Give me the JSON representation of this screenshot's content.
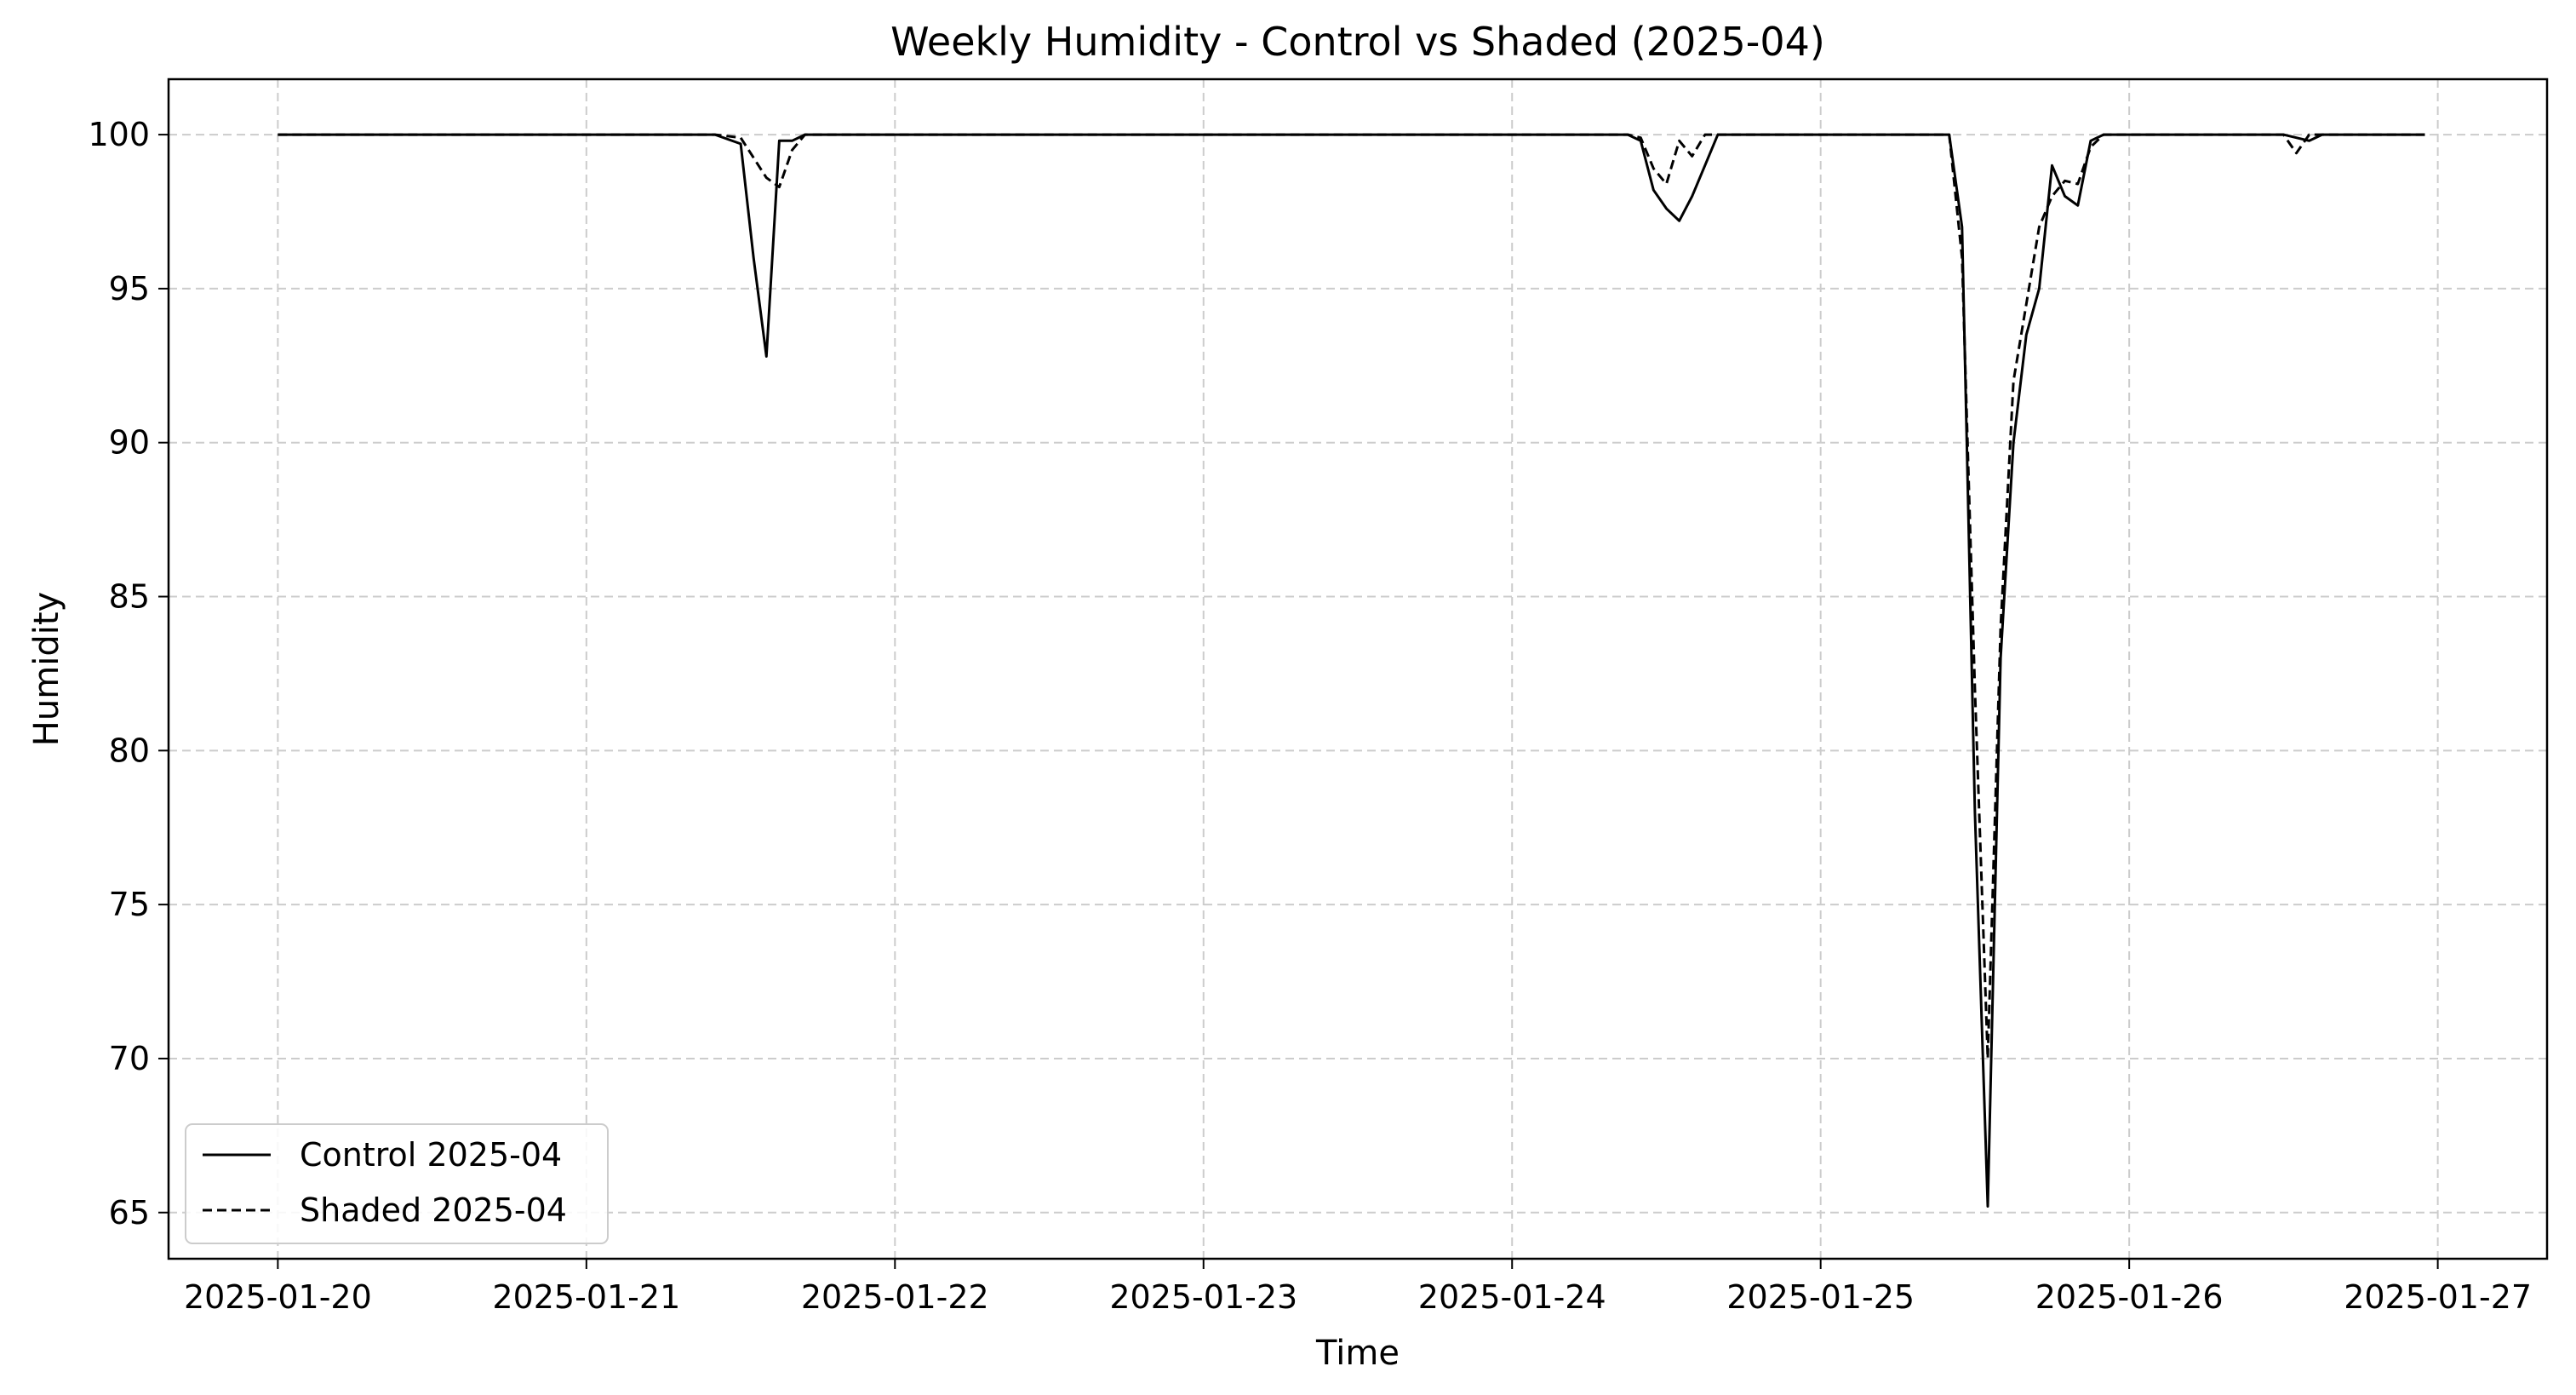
{
  "chart_data": {
    "type": "line",
    "title": "Weekly Humidity - Control vs Shaded (2025-04)",
    "xlabel": "Time",
    "ylabel": "Humidity",
    "xlim": [
      "2025-01-19 15:30",
      "2025-01-27 08:30"
    ],
    "ylim": [
      63.5,
      101.8
    ],
    "x_ticks": [
      "2025-01-20",
      "2025-01-21",
      "2025-01-22",
      "2025-01-23",
      "2025-01-24",
      "2025-01-25",
      "2025-01-26",
      "2025-01-27"
    ],
    "y_ticks": [
      65,
      70,
      75,
      80,
      85,
      90,
      95,
      100
    ],
    "grid": true,
    "legend_position": "lower-left",
    "series": [
      {
        "name": "Control 2025-04",
        "style": "solid",
        "color": "#000000",
        "x": [
          "2025-01-20 00:00",
          "2025-01-21 10:00",
          "2025-01-21 12:00",
          "2025-01-21 13:00",
          "2025-01-21 14:00",
          "2025-01-21 15:00",
          "2025-01-21 16:00",
          "2025-01-21 17:00",
          "2025-01-22 00:00",
          "2025-01-24 09:00",
          "2025-01-24 10:00",
          "2025-01-24 11:00",
          "2025-01-24 12:00",
          "2025-01-24 13:00",
          "2025-01-24 14:00",
          "2025-01-24 15:00",
          "2025-01-24 16:00",
          "2025-01-25 10:00",
          "2025-01-25 11:00",
          "2025-01-25 12:00",
          "2025-01-25 13:00",
          "2025-01-25 14:00",
          "2025-01-25 15:00",
          "2025-01-25 16:00",
          "2025-01-25 17:00",
          "2025-01-25 18:00",
          "2025-01-25 19:00",
          "2025-01-25 20:00",
          "2025-01-25 21:00",
          "2025-01-25 22:00",
          "2025-01-25 23:00",
          "2025-01-26 12:00",
          "2025-01-26 14:00",
          "2025-01-26 15:00",
          "2025-01-26 23:00"
        ],
        "y": [
          100,
          100,
          99.7,
          96,
          92.8,
          99.8,
          99.8,
          100,
          100,
          100,
          99.8,
          98.2,
          97.6,
          97.2,
          98,
          99,
          100,
          100,
          97,
          78,
          65.2,
          83,
          90,
          93.5,
          95,
          99,
          98,
          97.7,
          99.8,
          100,
          100,
          100,
          99.8,
          100,
          100
        ]
      },
      {
        "name": "Shaded 2025-04",
        "style": "dashed",
        "color": "#000000",
        "x": [
          "2025-01-20 00:00",
          "2025-01-21 10:00",
          "2025-01-21 12:00",
          "2025-01-21 14:00",
          "2025-01-21 15:00",
          "2025-01-21 16:00",
          "2025-01-21 17:00",
          "2025-01-22 00:00",
          "2025-01-24 09:00",
          "2025-01-24 10:00",
          "2025-01-24 11:00",
          "2025-01-24 12:00",
          "2025-01-24 13:00",
          "2025-01-24 14:00",
          "2025-01-24 15:00",
          "2025-01-24 16:00",
          "2025-01-25 10:00",
          "2025-01-25 11:00",
          "2025-01-25 12:00",
          "2025-01-25 13:00",
          "2025-01-25 14:00",
          "2025-01-25 15:00",
          "2025-01-25 16:00",
          "2025-01-25 17:00",
          "2025-01-25 18:00",
          "2025-01-25 19:00",
          "2025-01-25 20:00",
          "2025-01-25 21:00",
          "2025-01-25 22:00",
          "2025-01-26 12:00",
          "2025-01-26 13:00",
          "2025-01-26 14:00",
          "2025-01-26 15:00",
          "2025-01-26 23:00"
        ],
        "y": [
          100,
          100,
          99.9,
          98.6,
          98.3,
          99.5,
          100,
          100,
          100,
          99.9,
          98.9,
          98.4,
          99.8,
          99.3,
          100,
          100,
          100,
          96,
          82,
          70,
          84,
          92,
          94.5,
          97,
          98,
          98.5,
          98.4,
          99.6,
          100,
          100,
          99.4,
          100,
          100,
          100
        ]
      }
    ]
  }
}
